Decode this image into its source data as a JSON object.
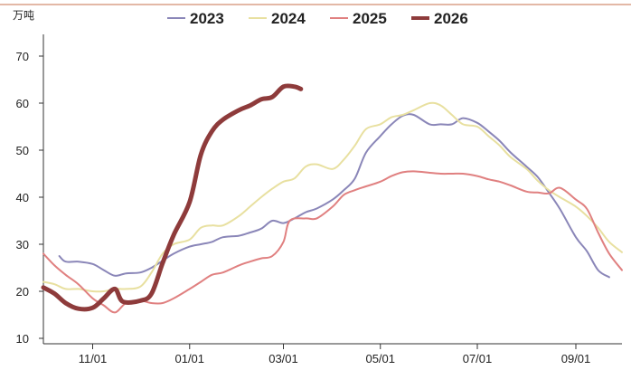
{
  "chart_data": {
    "type": "line",
    "title": "",
    "xlabel": "",
    "ylabel": "万吨",
    "ylim": [
      10,
      70
    ],
    "y_ticks": [
      10,
      20,
      30,
      40,
      50,
      60,
      70
    ],
    "x_domain": [
      "2025-10-01",
      "2026-09-30"
    ],
    "x_ticks": [
      {
        "date": "2025-11-01",
        "label": "11/01"
      },
      {
        "date": "2026-01-01",
        "label": "01/01"
      },
      {
        "date": "2026-03-01",
        "label": "03/01"
      },
      {
        "date": "2026-05-01",
        "label": "05/01"
      },
      {
        "date": "2026-07-01",
        "label": "07/01"
      },
      {
        "date": "2026-09-01",
        "label": "09/01"
      }
    ],
    "grid": false,
    "legend_position": "top",
    "series": [
      {
        "name": "2023",
        "color": "#8a86b8",
        "width": 2,
        "points": [
          [
            "2025-10-11",
            27.5
          ],
          [
            "2025-10-15",
            26.3
          ],
          [
            "2025-10-23",
            26.3
          ],
          [
            "2025-11-01",
            25.8
          ],
          [
            "2025-11-08",
            24.5
          ],
          [
            "2025-11-15",
            23.3
          ],
          [
            "2025-11-22",
            23.8
          ],
          [
            "2025-12-01",
            24.0
          ],
          [
            "2025-12-08",
            25.0
          ],
          [
            "2025-12-15",
            26.5
          ],
          [
            "2025-12-22",
            28.0
          ],
          [
            "2026-01-01",
            29.5
          ],
          [
            "2026-01-08",
            30.0
          ],
          [
            "2026-01-15",
            30.5
          ],
          [
            "2026-01-22",
            31.5
          ],
          [
            "2026-02-01",
            31.8
          ],
          [
            "2026-02-08",
            32.5
          ],
          [
            "2026-02-15",
            33.3
          ],
          [
            "2026-02-22",
            35.0
          ],
          [
            "2026-03-01",
            34.5
          ],
          [
            "2026-03-08",
            35.5
          ],
          [
            "2026-03-15",
            36.8
          ],
          [
            "2026-03-22",
            37.6
          ],
          [
            "2026-04-01",
            39.5
          ],
          [
            "2026-04-08",
            41.5
          ],
          [
            "2026-04-15",
            44.0
          ],
          [
            "2026-04-22",
            49.5
          ],
          [
            "2026-05-01",
            53.0
          ],
          [
            "2026-05-08",
            55.5
          ],
          [
            "2026-05-15",
            57.3
          ],
          [
            "2026-05-22",
            57.5
          ],
          [
            "2026-06-01",
            55.5
          ],
          [
            "2026-06-08",
            55.5
          ],
          [
            "2026-06-15",
            55.5
          ],
          [
            "2026-06-22",
            56.8
          ],
          [
            "2026-07-01",
            55.8
          ],
          [
            "2026-07-08",
            54.0
          ],
          [
            "2026-07-15",
            52.0
          ],
          [
            "2026-07-22",
            49.5
          ],
          [
            "2026-08-01",
            46.5
          ],
          [
            "2026-08-08",
            44.3
          ],
          [
            "2026-08-15",
            41.0
          ],
          [
            "2026-08-22",
            37.5
          ],
          [
            "2026-09-01",
            31.5
          ],
          [
            "2026-09-08",
            28.5
          ],
          [
            "2026-09-15",
            24.5
          ],
          [
            "2026-09-22",
            23.0
          ]
        ]
      },
      {
        "name": "2024",
        "color": "#e8e0a0",
        "width": 2,
        "points": [
          [
            "2025-10-01",
            22.0
          ],
          [
            "2025-10-08",
            21.5
          ],
          [
            "2025-10-15",
            20.5
          ],
          [
            "2025-10-23",
            20.5
          ],
          [
            "2025-11-01",
            20.0
          ],
          [
            "2025-11-08",
            20.0
          ],
          [
            "2025-11-15",
            20.5
          ],
          [
            "2025-11-22",
            20.5
          ],
          [
            "2025-12-01",
            21.0
          ],
          [
            "2025-12-08",
            24.0
          ],
          [
            "2025-12-15",
            28.0
          ],
          [
            "2025-12-22",
            30.0
          ],
          [
            "2026-01-01",
            31.0
          ],
          [
            "2026-01-08",
            33.5
          ],
          [
            "2026-01-15",
            34.0
          ],
          [
            "2026-01-22",
            34.0
          ],
          [
            "2026-02-01",
            36.0
          ],
          [
            "2026-02-08",
            38.0
          ],
          [
            "2026-02-15",
            40.0
          ],
          [
            "2026-02-22",
            41.8
          ],
          [
            "2026-03-01",
            43.3
          ],
          [
            "2026-03-08",
            44.0
          ],
          [
            "2026-03-15",
            46.5
          ],
          [
            "2026-03-22",
            47.0
          ],
          [
            "2026-04-01",
            46.0
          ],
          [
            "2026-04-08",
            48.0
          ],
          [
            "2026-04-15",
            51.0
          ],
          [
            "2026-04-22",
            54.5
          ],
          [
            "2026-05-01",
            55.5
          ],
          [
            "2026-05-08",
            57.0
          ],
          [
            "2026-05-15",
            57.5
          ],
          [
            "2026-05-22",
            58.5
          ],
          [
            "2026-06-01",
            60.0
          ],
          [
            "2026-06-08",
            59.5
          ],
          [
            "2026-06-15",
            57.5
          ],
          [
            "2026-06-22",
            55.5
          ],
          [
            "2026-07-01",
            55.0
          ],
          [
            "2026-07-08",
            53.0
          ],
          [
            "2026-07-15",
            51.0
          ],
          [
            "2026-07-22",
            48.5
          ],
          [
            "2026-08-01",
            46.0
          ],
          [
            "2026-08-08",
            43.5
          ],
          [
            "2026-08-15",
            41.5
          ],
          [
            "2026-08-22",
            40.0
          ],
          [
            "2026-09-01",
            38.0
          ],
          [
            "2026-09-08",
            36.0
          ],
          [
            "2026-09-15",
            33.5
          ],
          [
            "2026-09-22",
            30.5
          ],
          [
            "2026-09-30",
            28.3
          ]
        ]
      },
      {
        "name": "2025",
        "color": "#e08080",
        "width": 2,
        "points": [
          [
            "2025-10-01",
            28.0
          ],
          [
            "2025-10-08",
            25.5
          ],
          [
            "2025-10-15",
            23.5
          ],
          [
            "2025-10-23",
            21.5
          ],
          [
            "2025-11-01",
            18.5
          ],
          [
            "2025-11-08",
            17.0
          ],
          [
            "2025-11-15",
            15.5
          ],
          [
            "2025-11-22",
            17.5
          ],
          [
            "2025-12-01",
            18.0
          ],
          [
            "2025-12-08",
            17.5
          ],
          [
            "2025-12-15",
            17.5
          ],
          [
            "2025-12-22",
            18.5
          ],
          [
            "2026-01-01",
            20.5
          ],
          [
            "2026-01-08",
            22.0
          ],
          [
            "2026-01-15",
            23.5
          ],
          [
            "2026-01-22",
            24.0
          ],
          [
            "2026-02-01",
            25.5
          ],
          [
            "2026-02-08",
            26.3
          ],
          [
            "2026-02-15",
            27.0
          ],
          [
            "2026-02-22",
            27.5
          ],
          [
            "2026-03-01",
            30.5
          ],
          [
            "2026-03-05",
            35.0
          ],
          [
            "2026-03-15",
            35.5
          ],
          [
            "2026-03-22",
            35.5
          ],
          [
            "2026-04-01",
            38.0
          ],
          [
            "2026-04-08",
            40.5
          ],
          [
            "2026-04-15",
            41.5
          ],
          [
            "2026-04-22",
            42.3
          ],
          [
            "2026-05-01",
            43.3
          ],
          [
            "2026-05-08",
            44.5
          ],
          [
            "2026-05-15",
            45.3
          ],
          [
            "2026-05-22",
            45.5
          ],
          [
            "2026-06-01",
            45.2
          ],
          [
            "2026-06-08",
            45.0
          ],
          [
            "2026-06-15",
            45.0
          ],
          [
            "2026-06-22",
            45.0
          ],
          [
            "2026-07-01",
            44.5
          ],
          [
            "2026-07-08",
            43.8
          ],
          [
            "2026-07-15",
            43.3
          ],
          [
            "2026-07-22",
            42.5
          ],
          [
            "2026-08-01",
            41.2
          ],
          [
            "2026-08-08",
            41.0
          ],
          [
            "2026-08-15",
            40.8
          ],
          [
            "2026-08-22",
            42.0
          ],
          [
            "2026-09-01",
            39.5
          ],
          [
            "2026-09-08",
            37.5
          ],
          [
            "2026-09-15",
            32.5
          ],
          [
            "2026-09-22",
            28.0
          ],
          [
            "2026-09-30",
            24.5
          ]
        ]
      },
      {
        "name": "2026",
        "color": "#8e3b3b",
        "width": 5,
        "points": [
          [
            "2025-10-01",
            20.8
          ],
          [
            "2025-10-08",
            19.5
          ],
          [
            "2025-10-15",
            17.5
          ],
          [
            "2025-10-23",
            16.3
          ],
          [
            "2025-11-01",
            16.5
          ],
          [
            "2025-11-08",
            18.5
          ],
          [
            "2025-11-15",
            20.5
          ],
          [
            "2025-11-20",
            17.8
          ],
          [
            "2025-12-01",
            18.0
          ],
          [
            "2025-12-08",
            19.5
          ],
          [
            "2025-12-15",
            26.0
          ],
          [
            "2025-12-22",
            32.0
          ],
          [
            "2026-01-01",
            39.0
          ],
          [
            "2026-01-08",
            49.0
          ],
          [
            "2026-01-15",
            54.0
          ],
          [
            "2026-01-22",
            56.5
          ],
          [
            "2026-02-01",
            58.5
          ],
          [
            "2026-02-08",
            59.5
          ],
          [
            "2026-02-15",
            60.8
          ],
          [
            "2026-02-22",
            61.3
          ],
          [
            "2026-03-01",
            63.5
          ],
          [
            "2026-03-08",
            63.5
          ],
          [
            "2026-03-12",
            63.0
          ]
        ]
      }
    ]
  }
}
